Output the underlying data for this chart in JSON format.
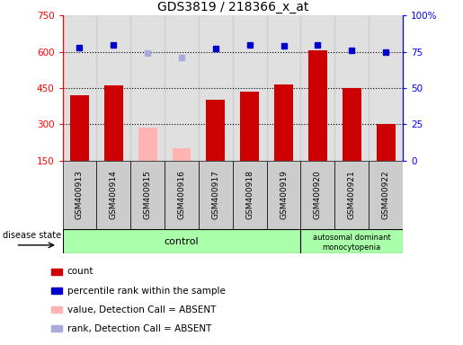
{
  "title": "GDS3819 / 218366_x_at",
  "samples": [
    "GSM400913",
    "GSM400914",
    "GSM400915",
    "GSM400916",
    "GSM400917",
    "GSM400918",
    "GSM400919",
    "GSM400920",
    "GSM400921",
    "GSM400922"
  ],
  "count_values": [
    420,
    460,
    285,
    200,
    400,
    435,
    465,
    605,
    450,
    300
  ],
  "count_absent": [
    false,
    false,
    true,
    true,
    false,
    false,
    false,
    false,
    false,
    false
  ],
  "rank_values": [
    78,
    80,
    74,
    71,
    77,
    80,
    79,
    80,
    76,
    75
  ],
  "rank_absent": [
    false,
    false,
    true,
    true,
    false,
    false,
    false,
    false,
    false,
    false
  ],
  "ylim_left": [
    150,
    750
  ],
  "ylim_right": [
    0,
    100
  ],
  "yticks_left": [
    150,
    300,
    450,
    600,
    750
  ],
  "yticks_right": [
    0,
    25,
    50,
    75,
    100
  ],
  "hlines": [
    300,
    450,
    600
  ],
  "bar_color_normal": "#cc0000",
  "bar_color_absent": "#ffb3b3",
  "rank_color_normal": "#0000cc",
  "rank_color_absent": "#aaaadd",
  "bar_width": 0.55,
  "control_count": 7,
  "disease_count": 3,
  "legend_items": [
    {
      "label": "count",
      "color": "#cc0000"
    },
    {
      "label": "percentile rank within the sample",
      "color": "#0000cc"
    },
    {
      "label": "value, Detection Call = ABSENT",
      "color": "#ffb3b3"
    },
    {
      "label": "rank, Detection Call = ABSENT",
      "color": "#aaaadd"
    }
  ],
  "group_color": "#aaffaa",
  "label_area_color": "#cccccc",
  "fig_width": 5.15,
  "fig_height": 3.84
}
